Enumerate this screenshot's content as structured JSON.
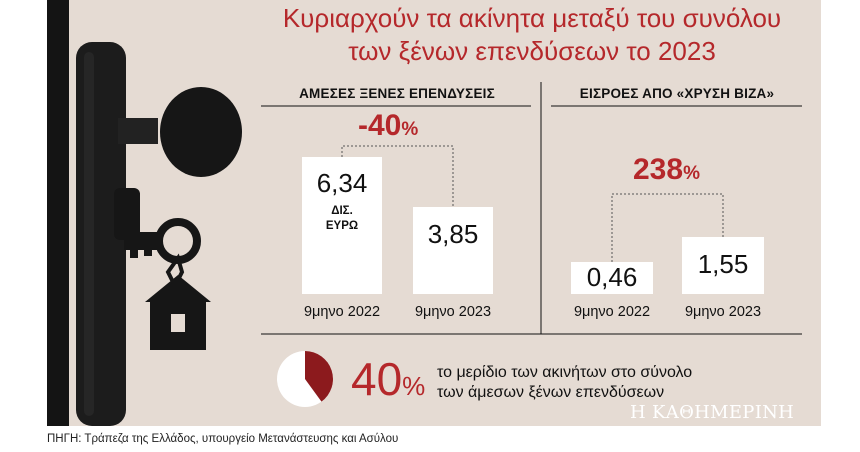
{
  "title_line1": "Κυριαρχούν τα ακίνητα μεταξύ του συνόλου",
  "title_line2": "των ξένων επενδύσεων το 2023",
  "chart_data": [
    {
      "type": "bar",
      "title": "ΑΜΕΣΕΣ ΞΕΝΕΣ ΕΠΕΝΔΥΣΕΙΣ",
      "categories": [
        "9μηνο 2022",
        "9μηνο 2023"
      ],
      "values": [
        6.34,
        3.85
      ],
      "value_labels": [
        "6,34",
        "3,85"
      ],
      "unit_label_line1": "ΔΙΣ.",
      "unit_label_line2": "ΕΥΡΩ",
      "change": "-40",
      "change_sign": "%"
    },
    {
      "type": "bar",
      "title": "ΕΙΣΡΟΕΣ ΑΠΟ «ΧΡΥΣΗ ΒΙΖΑ»",
      "categories": [
        "9μηνο 2022",
        "9μηνο 2023"
      ],
      "values": [
        0.46,
        1.55
      ],
      "value_labels": [
        "0,46",
        "1,55"
      ],
      "change": "238",
      "change_sign": "%"
    },
    {
      "type": "pie",
      "values": [
        40,
        60
      ],
      "label": "40",
      "label_sign": "%",
      "text_line1": "το μερίδιο των ακινήτων στο σύνολο",
      "text_line2": "των άμεσων ξένων επενδύσεων"
    }
  ],
  "colors": {
    "accent": "#b5282b",
    "panel": "#e5dbd3",
    "dark": "#111111"
  },
  "icons": [
    "door-handle-icon",
    "key-icon",
    "house-keychain-icon"
  ],
  "brand": "Η ΚΑΘΗΜΕΡΙΝΗ",
  "source": "ΠΗΓΗ: Τράπεζα της Ελλάδος, υπουργείο Μετανάστευσης και Ασύλου"
}
